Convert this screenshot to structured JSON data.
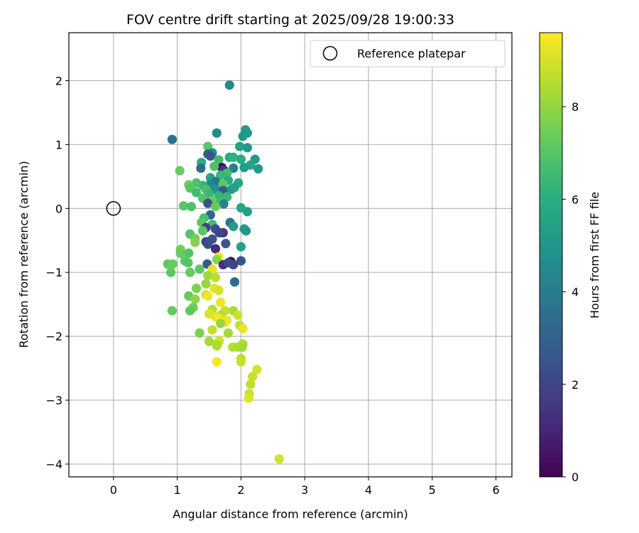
{
  "chart_data": {
    "type": "scatter",
    "title": "FOV centre drift starting at 2025/09/28 19:00:33",
    "xlabel": "Angular distance from reference (arcmin)",
    "ylabel": "Rotation from reference (arcmin)",
    "xlim": [
      -0.7,
      6.25
    ],
    "ylim": [
      -4.2,
      2.75
    ],
    "xticks": [
      "0",
      "1",
      "2",
      "3",
      "4",
      "5",
      "6"
    ],
    "yticks": [
      "2",
      "1",
      "0",
      "−1",
      "−2",
      "−3",
      "−4"
    ],
    "grid": true,
    "legend": {
      "label": "Reference platepar",
      "placement": "top-right"
    },
    "reference_point": {
      "x": 0,
      "y": 0
    },
    "colorbar": {
      "label": "Hours from first FF file",
      "ticks": [
        "0",
        "2",
        "4",
        "6",
        "8"
      ],
      "range": [
        0,
        9.6
      ],
      "colormap": "viridis"
    },
    "points": [
      {
        "x": 1.82,
        "y": 1.93,
        "t": 4.5
      },
      {
        "x": 0.92,
        "y": 1.08,
        "t": 3.6
      },
      {
        "x": 1.62,
        "y": 1.18,
        "t": 4.6
      },
      {
        "x": 2.07,
        "y": 1.23,
        "t": 5.3
      },
      {
        "x": 2.1,
        "y": 1.18,
        "t": 5.2
      },
      {
        "x": 2.03,
        "y": 1.13,
        "t": 5.1
      },
      {
        "x": 1.98,
        "y": 0.97,
        "t": 5.5
      },
      {
        "x": 2.1,
        "y": 0.95,
        "t": 5.2
      },
      {
        "x": 1.48,
        "y": 0.97,
        "t": 7.1
      },
      {
        "x": 1.55,
        "y": 0.87,
        "t": 4.7
      },
      {
        "x": 1.48,
        "y": 0.85,
        "t": 3.0
      },
      {
        "x": 1.52,
        "y": 0.82,
        "t": 2.6
      },
      {
        "x": 1.82,
        "y": 0.8,
        "t": 5.8
      },
      {
        "x": 1.88,
        "y": 0.8,
        "t": 6.2
      },
      {
        "x": 2.0,
        "y": 0.77,
        "t": 5.9
      },
      {
        "x": 2.22,
        "y": 0.77,
        "t": 5.3
      },
      {
        "x": 1.65,
        "y": 0.76,
        "t": 6.6
      },
      {
        "x": 1.38,
        "y": 0.72,
        "t": 6.0
      },
      {
        "x": 2.15,
        "y": 0.68,
        "t": 5.6
      },
      {
        "x": 2.05,
        "y": 0.64,
        "t": 5.4
      },
      {
        "x": 2.27,
        "y": 0.62,
        "t": 5.2
      },
      {
        "x": 1.88,
        "y": 0.63,
        "t": 4.2
      },
      {
        "x": 1.7,
        "y": 0.64,
        "t": 0.2
      },
      {
        "x": 1.73,
        "y": 0.6,
        "t": 1.6
      },
      {
        "x": 1.58,
        "y": 0.66,
        "t": 6.9
      },
      {
        "x": 1.37,
        "y": 0.63,
        "t": 3.4
      },
      {
        "x": 1.04,
        "y": 0.59,
        "t": 7.4
      },
      {
        "x": 1.78,
        "y": 0.55,
        "t": 6.7
      },
      {
        "x": 1.68,
        "y": 0.52,
        "t": 6.4
      },
      {
        "x": 1.52,
        "y": 0.48,
        "t": 5.7
      },
      {
        "x": 1.6,
        "y": 0.42,
        "t": 3.8
      },
      {
        "x": 1.8,
        "y": 0.44,
        "t": 6.0
      },
      {
        "x": 1.72,
        "y": 0.38,
        "t": 7.1
      },
      {
        "x": 1.96,
        "y": 0.4,
        "t": 5.8
      },
      {
        "x": 1.52,
        "y": 0.38,
        "t": 4.4
      },
      {
        "x": 1.4,
        "y": 0.36,
        "t": 6.3
      },
      {
        "x": 1.3,
        "y": 0.4,
        "t": 6.9
      },
      {
        "x": 1.18,
        "y": 0.37,
        "t": 7.5
      },
      {
        "x": 1.2,
        "y": 0.32,
        "t": 7.1
      },
      {
        "x": 1.45,
        "y": 0.3,
        "t": 6.8
      },
      {
        "x": 1.6,
        "y": 0.3,
        "t": 4.9
      },
      {
        "x": 1.72,
        "y": 0.28,
        "t": 2.8
      },
      {
        "x": 1.85,
        "y": 0.3,
        "t": 5.1
      },
      {
        "x": 1.9,
        "y": 0.33,
        "t": 5.6
      },
      {
        "x": 1.3,
        "y": 0.25,
        "t": 6.6
      },
      {
        "x": 1.5,
        "y": 0.22,
        "t": 6.4
      },
      {
        "x": 1.65,
        "y": 0.2,
        "t": 6.3
      },
      {
        "x": 1.78,
        "y": 0.18,
        "t": 6.5
      },
      {
        "x": 1.4,
        "y": 0.16,
        "t": 7.0
      },
      {
        "x": 1.55,
        "y": 0.12,
        "t": 7.4
      },
      {
        "x": 1.68,
        "y": 0.1,
        "t": 6.6
      },
      {
        "x": 1.48,
        "y": 0.08,
        "t": 2.5
      },
      {
        "x": 1.73,
        "y": 0.07,
        "t": 4.3
      },
      {
        "x": 1.1,
        "y": 0.04,
        "t": 7.1
      },
      {
        "x": 1.22,
        "y": 0.03,
        "t": 6.9
      },
      {
        "x": 1.6,
        "y": 0.03,
        "t": 7.3
      },
      {
        "x": 2.0,
        "y": 0.01,
        "t": 5.7
      },
      {
        "x": 2.1,
        "y": -0.05,
        "t": 5.4
      },
      {
        "x": 1.52,
        "y": -0.1,
        "t": 3.2
      },
      {
        "x": 1.42,
        "y": -0.15,
        "t": 6.8
      },
      {
        "x": 1.38,
        "y": -0.22,
        "t": 7.2
      },
      {
        "x": 1.55,
        "y": -0.25,
        "t": 6.6
      },
      {
        "x": 1.83,
        "y": -0.22,
        "t": 3.6
      },
      {
        "x": 1.88,
        "y": -0.28,
        "t": 5.3
      },
      {
        "x": 1.45,
        "y": -0.3,
        "t": 1.8
      },
      {
        "x": 1.6,
        "y": -0.32,
        "t": 2.2
      },
      {
        "x": 1.72,
        "y": -0.38,
        "t": 1.6
      },
      {
        "x": 1.66,
        "y": -0.38,
        "t": 2.0
      },
      {
        "x": 1.4,
        "y": -0.35,
        "t": 7.1
      },
      {
        "x": 1.2,
        "y": -0.4,
        "t": 7.0
      },
      {
        "x": 2.05,
        "y": -0.32,
        "t": 5.4
      },
      {
        "x": 2.08,
        "y": -0.35,
        "t": 5.1
      },
      {
        "x": 1.28,
        "y": -0.47,
        "t": 7.5
      },
      {
        "x": 1.45,
        "y": -0.52,
        "t": 2.1
      },
      {
        "x": 1.55,
        "y": -0.48,
        "t": 2.4
      },
      {
        "x": 1.28,
        "y": -0.53,
        "t": 7.8
      },
      {
        "x": 1.48,
        "y": -0.56,
        "t": 2.3
      },
      {
        "x": 1.76,
        "y": -0.55,
        "t": 2.6
      },
      {
        "x": 2.0,
        "y": -0.6,
        "t": 5.6
      },
      {
        "x": 1.6,
        "y": -0.63,
        "t": 1.2
      },
      {
        "x": 1.05,
        "y": -0.64,
        "t": 7.6
      },
      {
        "x": 1.05,
        "y": -0.7,
        "t": 7.3
      },
      {
        "x": 1.18,
        "y": -0.7,
        "t": 7.0
      },
      {
        "x": 1.65,
        "y": -0.76,
        "t": 9.5
      },
      {
        "x": 1.62,
        "y": -0.8,
        "t": 7.9
      },
      {
        "x": 1.84,
        "y": -0.83,
        "t": 0.2
      },
      {
        "x": 2.0,
        "y": -0.82,
        "t": 2.5
      },
      {
        "x": 1.12,
        "y": -0.82,
        "t": 7.2
      },
      {
        "x": 1.17,
        "y": -0.85,
        "t": 7.0
      },
      {
        "x": 1.47,
        "y": -0.87,
        "t": 2.7
      },
      {
        "x": 0.85,
        "y": -0.87,
        "t": 7.2
      },
      {
        "x": 0.93,
        "y": -0.87,
        "t": 7.4
      },
      {
        "x": 1.72,
        "y": -0.88,
        "t": 1.3
      },
      {
        "x": 1.88,
        "y": -0.88,
        "t": 1.9
      },
      {
        "x": 1.8,
        "y": -0.85,
        "t": 2.1
      },
      {
        "x": 1.35,
        "y": -0.95,
        "t": 7.2
      },
      {
        "x": 1.55,
        "y": -0.95,
        "t": 9.3
      },
      {
        "x": 1.2,
        "y": -1.0,
        "t": 7.3
      },
      {
        "x": 0.9,
        "y": -1.0,
        "t": 7.2
      },
      {
        "x": 1.48,
        "y": -1.05,
        "t": 8.2
      },
      {
        "x": 1.6,
        "y": -1.08,
        "t": 8.6
      },
      {
        "x": 1.45,
        "y": -1.18,
        "t": 8.1
      },
      {
        "x": 1.9,
        "y": -1.15,
        "t": 3.4
      },
      {
        "x": 1.3,
        "y": -1.25,
        "t": 7.7
      },
      {
        "x": 1.58,
        "y": -1.25,
        "t": 9.2
      },
      {
        "x": 1.65,
        "y": -1.28,
        "t": 9.0
      },
      {
        "x": 1.45,
        "y": -1.35,
        "t": 8.9
      },
      {
        "x": 1.48,
        "y": -1.37,
        "t": 9.4
      },
      {
        "x": 1.18,
        "y": -1.37,
        "t": 7.3
      },
      {
        "x": 1.28,
        "y": -1.42,
        "t": 8.0
      },
      {
        "x": 1.68,
        "y": -1.47,
        "t": 9.4
      },
      {
        "x": 1.25,
        "y": -1.55,
        "t": 7.5
      },
      {
        "x": 1.2,
        "y": -1.6,
        "t": 7.2
      },
      {
        "x": 0.92,
        "y": -1.6,
        "t": 7.3
      },
      {
        "x": 1.55,
        "y": -1.58,
        "t": 8.6
      },
      {
        "x": 1.75,
        "y": -1.6,
        "t": 8.8
      },
      {
        "x": 1.88,
        "y": -1.6,
        "t": 8.4
      },
      {
        "x": 1.5,
        "y": -1.65,
        "t": 9.1
      },
      {
        "x": 1.68,
        "y": -1.67,
        "t": 8.5
      },
      {
        "x": 1.95,
        "y": -1.67,
        "t": 8.9
      },
      {
        "x": 1.6,
        "y": -1.7,
        "t": 9.3
      },
      {
        "x": 1.65,
        "y": -1.72,
        "t": 9.5
      },
      {
        "x": 1.75,
        "y": -1.78,
        "t": 9.2
      },
      {
        "x": 1.78,
        "y": -1.75,
        "t": 9.4
      },
      {
        "x": 1.68,
        "y": -1.8,
        "t": 8.1
      },
      {
        "x": 1.98,
        "y": -1.83,
        "t": 8.7
      },
      {
        "x": 2.03,
        "y": -1.88,
        "t": 9.3
      },
      {
        "x": 1.55,
        "y": -1.9,
        "t": 8.7
      },
      {
        "x": 1.35,
        "y": -1.95,
        "t": 7.7
      },
      {
        "x": 1.8,
        "y": -1.95,
        "t": 8.3
      },
      {
        "x": 1.5,
        "y": -2.08,
        "t": 8.3
      },
      {
        "x": 1.66,
        "y": -2.07,
        "t": 9.1
      },
      {
        "x": 1.63,
        "y": -2.12,
        "t": 8.6
      },
      {
        "x": 1.62,
        "y": -2.15,
        "t": 8.4
      },
      {
        "x": 1.87,
        "y": -2.17,
        "t": 8.6
      },
      {
        "x": 1.95,
        "y": -2.17,
        "t": 8.4
      },
      {
        "x": 2.03,
        "y": -2.12,
        "t": 8.5
      },
      {
        "x": 2.02,
        "y": -2.17,
        "t": 8.3
      },
      {
        "x": 2.0,
        "y": -2.35,
        "t": 8.7
      },
      {
        "x": 2.0,
        "y": -2.4,
        "t": 8.8
      },
      {
        "x": 1.62,
        "y": -2.4,
        "t": 9.5
      },
      {
        "x": 2.25,
        "y": -2.52,
        "t": 9.0
      },
      {
        "x": 2.18,
        "y": -2.63,
        "t": 8.8
      },
      {
        "x": 2.15,
        "y": -2.75,
        "t": 8.7
      },
      {
        "x": 2.13,
        "y": -2.9,
        "t": 8.8
      },
      {
        "x": 2.12,
        "y": -2.97,
        "t": 9.2
      },
      {
        "x": 2.6,
        "y": -3.92,
        "t": 9.0
      }
    ]
  }
}
